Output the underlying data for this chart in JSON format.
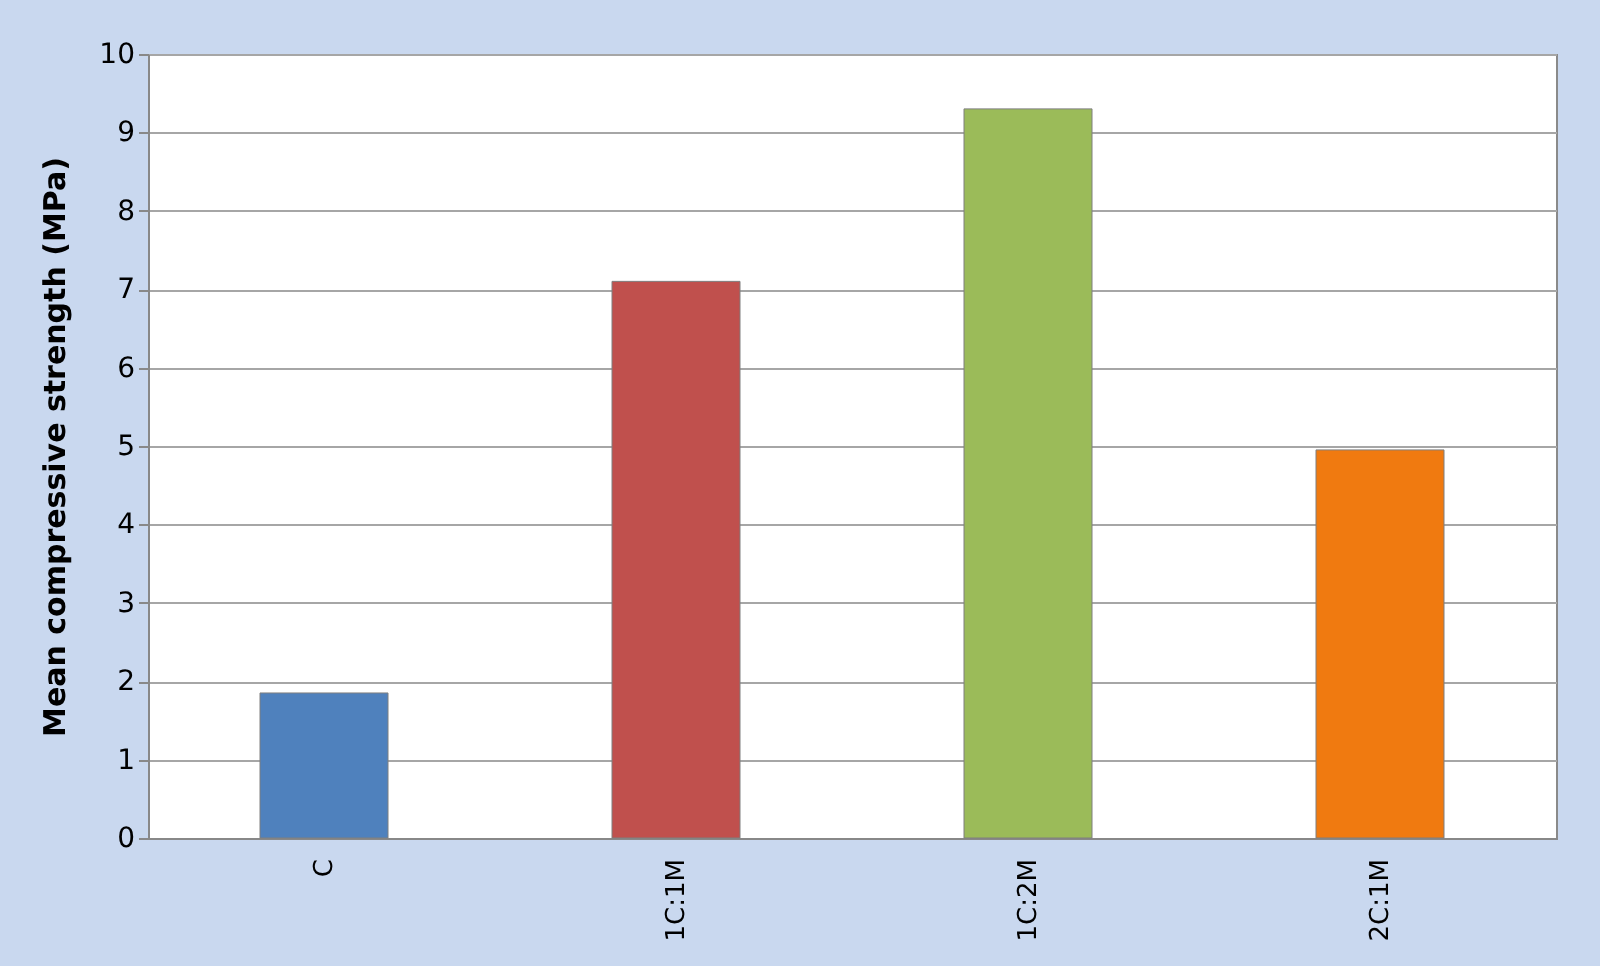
{
  "chart_data": {
    "type": "bar",
    "ylabel": "Mean compressive strength (MPa)",
    "categories": [
      "C",
      "1C:1M",
      "1C:2M",
      "2C:1M"
    ],
    "values": [
      1.85,
      7.1,
      9.3,
      4.95
    ],
    "colors": [
      "#4f81bd",
      "#c0504d",
      "#9bbb59",
      "#f07a10"
    ],
    "ylim": [
      0,
      10
    ],
    "yticks": [
      0,
      1,
      2,
      3,
      4,
      5,
      6,
      7,
      8,
      9,
      10
    ],
    "grid": "y"
  }
}
